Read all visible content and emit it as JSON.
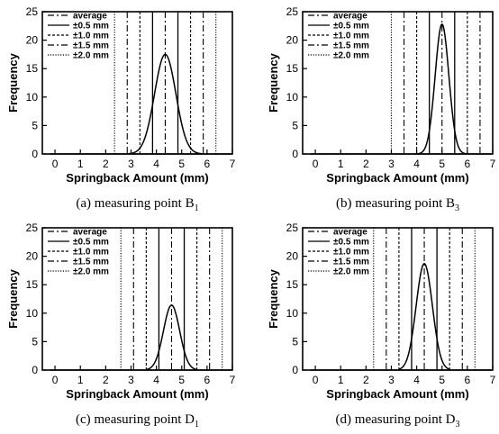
{
  "chart_data": [
    {
      "type": "line",
      "caption_main": "(a) measuring point B",
      "caption_sub": "1",
      "xlabel": "Springback Amount (mm)",
      "ylabel": "Frequency",
      "xlim": [
        -0.5,
        7
      ],
      "ylim": [
        0,
        25
      ],
      "xticks": [
        0,
        1,
        2,
        3,
        4,
        5,
        6,
        7
      ],
      "yticks": [
        0,
        5,
        10,
        15,
        20,
        25
      ],
      "legend": [
        "average",
        "±0.5 mm",
        "±1.0 mm",
        "±1.5 mm",
        "±2.0 mm"
      ],
      "legend_placement": "top-left",
      "distribution": {
        "mean": 4.35,
        "sigma": 0.42,
        "peak": 17.5,
        "x_range": [
          2.9,
          5.8
        ]
      },
      "average": 4.35,
      "tolerance_lines": {
        "0.5": [
          3.85,
          4.85
        ],
        "1.0": [
          3.35,
          5.35
        ],
        "1.5": [
          2.85,
          5.85
        ],
        "2.0": [
          2.35,
          6.35
        ]
      }
    },
    {
      "type": "line",
      "caption_main": "(b) measuring point B",
      "caption_sub": "3",
      "xlabel": "Springback Amount (mm)",
      "ylabel": "Frequency",
      "xlim": [
        -0.5,
        7
      ],
      "ylim": [
        0,
        25
      ],
      "xticks": [
        0,
        1,
        2,
        3,
        4,
        5,
        6,
        7
      ],
      "yticks": [
        0,
        5,
        10,
        15,
        20,
        25
      ],
      "legend": [
        "average",
        "±0.5 mm",
        "±1.0 mm",
        "±1.5 mm",
        "±2.0 mm"
      ],
      "legend_placement": "top-left",
      "distribution": {
        "mean": 5.0,
        "sigma": 0.27,
        "peak": 22.8,
        "x_range": [
          4.0,
          6.0
        ]
      },
      "average": 5.0,
      "tolerance_lines": {
        "0.5": [
          4.5,
          5.5
        ],
        "1.0": [
          4.0,
          6.0
        ],
        "1.5": [
          3.5,
          6.5
        ],
        "2.0": [
          3.0,
          7.0
        ]
      }
    },
    {
      "type": "line",
      "caption_main": "(c) measuring point D",
      "caption_sub": "1",
      "xlabel": "Springback Amount (mm)",
      "ylabel": "Frequency",
      "xlim": [
        -0.5,
        7
      ],
      "ylim": [
        0,
        25
      ],
      "xticks": [
        0,
        1,
        2,
        3,
        4,
        5,
        6,
        7
      ],
      "yticks": [
        0,
        5,
        10,
        15,
        20,
        25
      ],
      "legend": [
        "average",
        "±0.5 mm",
        "±1.0 mm",
        "±1.5 mm",
        "±2.0 mm"
      ],
      "legend_placement": "top-left",
      "distribution": {
        "mean": 4.6,
        "sigma": 0.32,
        "peak": 11.4,
        "x_range": [
          3.6,
          5.6
        ]
      },
      "average": 4.6,
      "tolerance_lines": {
        "0.5": [
          4.1,
          5.1
        ],
        "1.0": [
          3.6,
          5.6
        ],
        "1.5": [
          3.1,
          6.1
        ],
        "2.0": [
          2.6,
          6.6
        ]
      }
    },
    {
      "type": "line",
      "caption_main": "(d) measuring point D",
      "caption_sub": "3",
      "xlabel": "Springback Amount (mm)",
      "ylabel": "Frequency",
      "xlim": [
        -0.5,
        7
      ],
      "ylim": [
        0,
        25
      ],
      "xticks": [
        0,
        1,
        2,
        3,
        4,
        5,
        6,
        7
      ],
      "yticks": [
        0,
        5,
        10,
        15,
        20,
        25
      ],
      "legend": [
        "average",
        "±0.5 mm",
        "±1.0 mm",
        "±1.5 mm",
        "±2.0 mm"
      ],
      "legend_placement": "top-left",
      "distribution": {
        "mean": 4.3,
        "sigma": 0.32,
        "peak": 18.7,
        "x_range": [
          3.3,
          5.3
        ]
      },
      "average": 4.3,
      "tolerance_lines": {
        "0.5": [
          3.8,
          4.8
        ],
        "1.0": [
          3.3,
          5.3
        ],
        "1.5": [
          2.8,
          5.8
        ],
        "2.0": [
          2.3,
          6.3
        ]
      }
    }
  ]
}
